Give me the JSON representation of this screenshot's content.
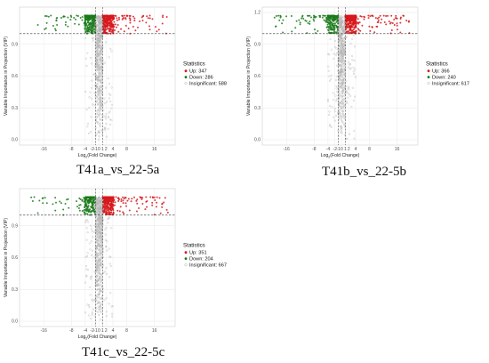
{
  "colors": {
    "up": "#d7191c",
    "down": "#1a7a1a",
    "insignificant": "#b3b3b3",
    "threshold_line": "#333333"
  },
  "chart_data": [
    {
      "type": "scatter",
      "title": "",
      "caption": "T41a_vs_22-5a",
      "xlabel_prefix": "Log",
      "xlabel_sub": "2",
      "xlabel_suffix": "(Fold Change)",
      "ylabel": "Variable Importance in Projection (VIP)",
      "xlim": [
        -23,
        22
      ],
      "ylim": [
        -0.05,
        1.25
      ],
      "x_ticks": [
        -16,
        -8,
        -4,
        -2,
        -1,
        0,
        1,
        2,
        4,
        8,
        16
      ],
      "x_tick_labels": [
        "-16",
        "-8",
        "-4",
        "-2",
        "-1",
        "0",
        "1",
        "2",
        "4",
        "8",
        "16"
      ],
      "y_ticks": [
        0.0,
        0.3,
        0.6,
        0.9
      ],
      "y_tick_labels": [
        "0.0",
        "0.3",
        "0.6",
        "0.9"
      ],
      "vip_threshold": 1.0,
      "fc_thresholds": [
        -1,
        1
      ],
      "legend": {
        "title": "Statistics",
        "position": "right",
        "entries": [
          {
            "label": "Up: 347",
            "group": "up"
          },
          {
            "label": "Down: 286",
            "group": "down"
          },
          {
            "label": "Insignificant: 588",
            "group": "insignificant"
          }
        ]
      },
      "series": [
        {
          "name": "Up",
          "count": 347,
          "x_range": [
            1,
            20
          ],
          "vip_range": [
            1.0,
            1.17
          ]
        },
        {
          "name": "Down",
          "count": 286,
          "x_range": [
            -21,
            -1
          ],
          "vip_range": [
            1.0,
            1.17
          ]
        },
        {
          "name": "Insignificant",
          "count": 588,
          "x_range": [
            -8,
            8
          ],
          "vip_range": [
            0.0,
            1.17
          ]
        }
      ],
      "grid": true
    },
    {
      "type": "scatter",
      "title": "",
      "caption": "T41b_vs_22-5b",
      "xlabel_prefix": "Log",
      "xlabel_sub": "2",
      "xlabel_suffix": "(Fold Change)",
      "ylabel": "Variable Importance in Projection (VIP)",
      "xlim": [
        -23,
        22
      ],
      "ylim": [
        -0.05,
        1.25
      ],
      "x_ticks": [
        -16,
        -8,
        -4,
        -2,
        -1,
        0,
        1,
        2,
        4,
        8,
        16
      ],
      "x_tick_labels": [
        "-16",
        "-8",
        "-4",
        "-2",
        "-1",
        "0",
        "1",
        "2",
        "4",
        "8",
        "16"
      ],
      "y_ticks": [
        0.0,
        0.3,
        0.6,
        0.9,
        1.2
      ],
      "y_tick_labels": [
        "0.0",
        "0.3",
        "0.6",
        "0.9",
        "1.2"
      ],
      "vip_threshold": 1.0,
      "fc_thresholds": [
        -1,
        1
      ],
      "legend": {
        "title": "Statistics",
        "position": "right",
        "entries": [
          {
            "label": "Up: 366",
            "group": "up"
          },
          {
            "label": "Down: 240",
            "group": "down"
          },
          {
            "label": "Insignificant: 617",
            "group": "insignificant"
          }
        ]
      },
      "series": [
        {
          "name": "Up",
          "count": 366,
          "x_range": [
            1,
            20
          ],
          "vip_range": [
            1.0,
            1.17
          ]
        },
        {
          "name": "Down",
          "count": 240,
          "x_range": [
            -21,
            -1
          ],
          "vip_range": [
            1.0,
            1.17
          ]
        },
        {
          "name": "Insignificant",
          "count": 617,
          "x_range": [
            -8,
            8
          ],
          "vip_range": [
            0.0,
            1.17
          ]
        }
      ],
      "grid": true
    },
    {
      "type": "scatter",
      "title": "",
      "caption": "T41c_vs_22-5c",
      "xlabel_prefix": "Log",
      "xlabel_sub": "2",
      "xlabel_suffix": "(Fold Change)",
      "ylabel": "Variable Importance in Projection (VIP)",
      "xlim": [
        -23,
        22
      ],
      "ylim": [
        -0.05,
        1.25
      ],
      "x_ticks": [
        -16,
        -8,
        -4,
        -2,
        -1,
        0,
        1,
        2,
        4,
        8,
        16
      ],
      "x_tick_labels": [
        "-16",
        "-8",
        "-4",
        "-2",
        "-1",
        "0",
        "1",
        "2",
        "4",
        "8",
        "16"
      ],
      "y_ticks": [
        0.0,
        0.3,
        0.6,
        0.9
      ],
      "y_tick_labels": [
        "0.0",
        "0.3",
        "0.6",
        "0.9"
      ],
      "vip_threshold": 1.0,
      "fc_thresholds": [
        -1,
        1
      ],
      "legend": {
        "title": "Statistics",
        "position": "right",
        "entries": [
          {
            "label": "Up: 351",
            "group": "up"
          },
          {
            "label": "Down: 204",
            "group": "down"
          },
          {
            "label": "Insignificant: 667",
            "group": "insignificant"
          }
        ]
      },
      "series": [
        {
          "name": "Up",
          "count": 351,
          "x_range": [
            1,
            20
          ],
          "vip_range": [
            1.0,
            1.17
          ]
        },
        {
          "name": "Down",
          "count": 204,
          "x_range": [
            -21,
            -1
          ],
          "vip_range": [
            1.0,
            1.17
          ]
        },
        {
          "name": "Insignificant",
          "count": 667,
          "x_range": [
            -8,
            8
          ],
          "vip_range": [
            0.0,
            1.17
          ]
        }
      ],
      "grid": true
    }
  ]
}
